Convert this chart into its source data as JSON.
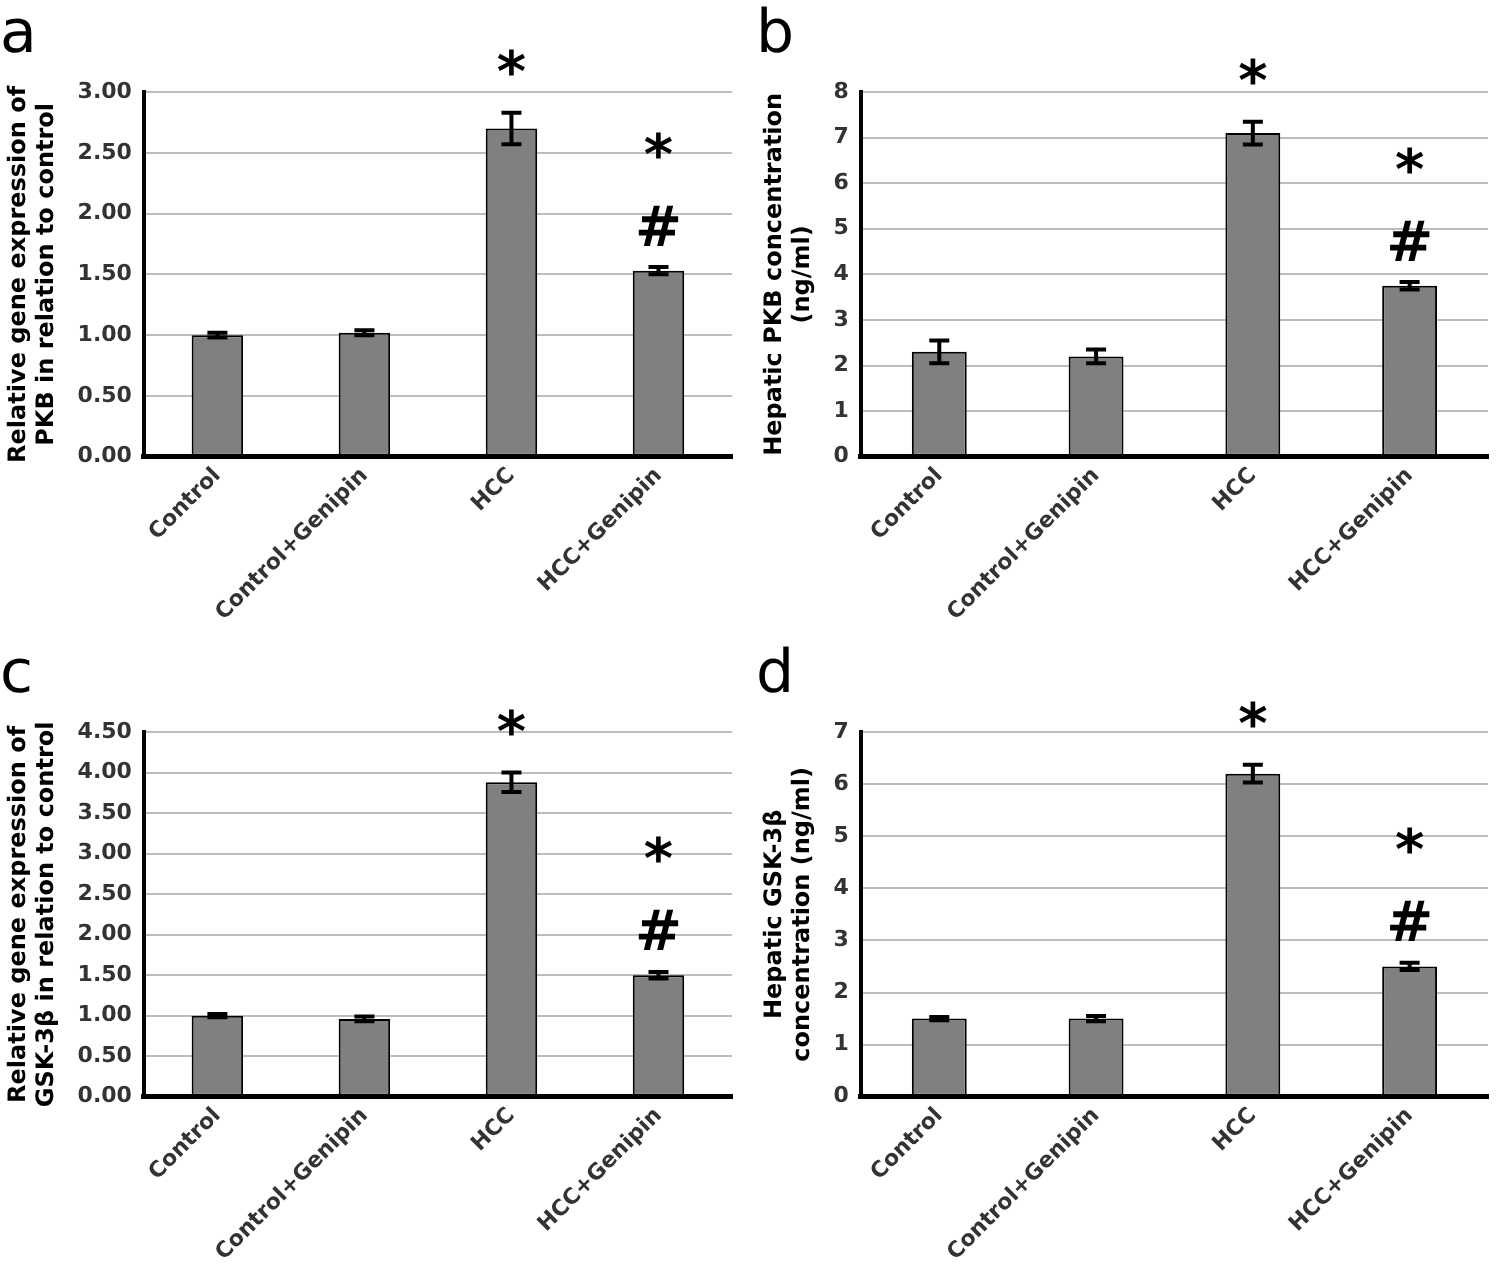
{
  "chart_data": [
    {
      "type": "bar",
      "title": "a",
      "ylabel": "Relative gene expression of\nPKB in relation to control",
      "categories": [
        "Control",
        "Control+Genipin",
        "HCC",
        "HCC+Genipin"
      ],
      "color": "#808080",
      "values": [
        1.0,
        1.02,
        2.7,
        1.53
      ],
      "errors": [
        0.02,
        0.02,
        0.13,
        0.03
      ],
      "ylim": [
        0,
        3
      ],
      "yticks": [
        {
          "value": 0,
          "label": "0.00"
        },
        {
          "value": 0.5,
          "label": "0.50"
        },
        {
          "value": 1,
          "label": "1.00"
        },
        {
          "value": 1.5,
          "label": "1.50"
        },
        {
          "value": 2,
          "label": "2.00"
        },
        {
          "value": 2.5,
          "label": "2.50"
        },
        {
          "value": 3,
          "label": "3.00"
        }
      ],
      "grid": "y",
      "annotations": [
        {
          "text": "*",
          "x": "HCC",
          "y": 2.7
        },
        {
          "text": "#",
          "x": "HCC+Genipin",
          "y": 1.53
        },
        {
          "text": "*",
          "x": "HCC+Genipin",
          "y": 1.53
        }
      ]
    },
    {
      "type": "bar",
      "title": "b",
      "ylabel": "Hepatic PKB concentration\n(ng/ml)",
      "categories": [
        "Control",
        "Control+Genipin",
        "HCC",
        "HCC+Genipin"
      ],
      "color": "#808080",
      "values": [
        2.3,
        2.2,
        7.1,
        3.75
      ],
      "errors": [
        0.25,
        0.15,
        0.25,
        0.08
      ],
      "ylim": [
        0,
        8
      ],
      "yticks": [
        0,
        1,
        2,
        3,
        4,
        5,
        6,
        7,
        8
      ],
      "grid": "y",
      "annotations": [
        {
          "text": "*",
          "x": "HCC",
          "y": 7.1
        },
        {
          "text": "#",
          "x": "HCC+Genipin",
          "y": 3.75
        },
        {
          "text": "*",
          "x": "HCC+Genipin",
          "y": 3.75
        }
      ]
    },
    {
      "type": "bar",
      "title": "c",
      "ylabel": "Relative gene expression of\nGSK-3β in relation to control",
      "categories": [
        "Control",
        "Control+Genipin",
        "HCC",
        "HCC+Genipin"
      ],
      "color": "#808080",
      "values": [
        1.0,
        0.96,
        3.88,
        1.5
      ],
      "errors": [
        0.02,
        0.03,
        0.12,
        0.04
      ],
      "ylim": [
        0,
        4.5
      ],
      "yticks": [
        {
          "value": 0,
          "label": "0.00"
        },
        {
          "value": 0.5,
          "label": "0.50"
        },
        {
          "value": 1,
          "label": "1.00"
        },
        {
          "value": 1.5,
          "label": "1.50"
        },
        {
          "value": 2,
          "label": "2.00"
        },
        {
          "value": 2.5,
          "label": "2.50"
        },
        {
          "value": 3,
          "label": "3.00"
        },
        {
          "value": 3.5,
          "label": "3.50"
        },
        {
          "value": 4,
          "label": "4.00"
        },
        {
          "value": 4.5,
          "label": "4.50"
        }
      ],
      "grid": "y",
      "annotations": [
        {
          "text": "*",
          "x": "HCC",
          "y": 3.88
        },
        {
          "text": "#",
          "x": "HCC+Genipin",
          "y": 1.5
        },
        {
          "text": "*",
          "x": "HCC+Genipin",
          "y": 1.5
        }
      ]
    },
    {
      "type": "bar",
      "title": "d",
      "ylabel": "Hepatic GSK-3β\nconcentration (ng/ml)",
      "categories": [
        "Control",
        "Control+Genipin",
        "HCC",
        "HCC+Genipin"
      ],
      "color": "#808080",
      "values": [
        1.5,
        1.5,
        6.2,
        2.5
      ],
      "errors": [
        0.03,
        0.05,
        0.17,
        0.07
      ],
      "ylim": [
        0,
        7
      ],
      "yticks": [
        0,
        1,
        2,
        3,
        4,
        5,
        6,
        7
      ],
      "grid": "y",
      "annotations": [
        {
          "text": "*",
          "x": "HCC",
          "y": 6.2
        },
        {
          "text": "#",
          "x": "HCC+Genipin",
          "y": 2.5
        },
        {
          "text": "*",
          "x": "HCC+Genipin",
          "y": 2.5
        }
      ]
    }
  ]
}
